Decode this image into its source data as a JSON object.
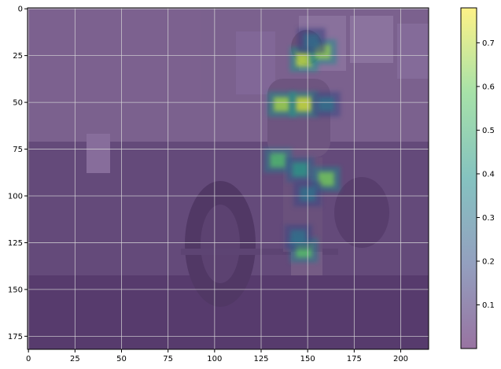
{
  "chart_data": {
    "type": "heatmap",
    "title": "",
    "xlabel": "",
    "ylabel": "",
    "xlim": [
      0,
      215
    ],
    "ylim": [
      182,
      0
    ],
    "y_axis_inverted": true,
    "grid": true,
    "x_ticks": [
      0,
      25,
      50,
      75,
      100,
      125,
      150,
      175,
      200
    ],
    "y_ticks": [
      0,
      25,
      50,
      75,
      100,
      125,
      150,
      175
    ],
    "x_tick_labels": [
      "0",
      "25",
      "50",
      "75",
      "100",
      "125",
      "150",
      "175",
      "200"
    ],
    "y_tick_labels": [
      "0",
      "25",
      "50",
      "75",
      "100",
      "125",
      "150",
      "175"
    ],
    "background": "grayscale photo of a person performing a barbell deadlift in a gym, overlaid with a purple-tinted attention heatmap",
    "colormap": "viridis",
    "overlay_alpha": 0.5,
    "colorbar": {
      "min": 0.0,
      "max": 0.78,
      "ticks": [
        0.1,
        0.2,
        0.3,
        0.4,
        0.5,
        0.6,
        0.7
      ],
      "tick_labels": [
        "0.1",
        "0.2",
        "0.3",
        "0.4",
        "0.5",
        "0.6",
        "0.7"
      ],
      "placement": "right"
    },
    "hotspots": [
      {
        "x": 148,
        "y": 27,
        "value": 0.72
      },
      {
        "x": 158,
        "y": 23,
        "value": 0.66
      },
      {
        "x": 152,
        "y": 17,
        "value": 0.28
      },
      {
        "x": 136,
        "y": 51,
        "value": 0.68
      },
      {
        "x": 148,
        "y": 51,
        "value": 0.74
      },
      {
        "x": 160,
        "y": 51,
        "value": 0.3
      },
      {
        "x": 134,
        "y": 81,
        "value": 0.55
      },
      {
        "x": 146,
        "y": 86,
        "value": 0.42
      },
      {
        "x": 160,
        "y": 91,
        "value": 0.62
      },
      {
        "x": 150,
        "y": 99,
        "value": 0.3
      },
      {
        "x": 148,
        "y": 129,
        "value": 0.58
      },
      {
        "x": 145,
        "y": 122,
        "value": 0.3
      }
    ]
  }
}
